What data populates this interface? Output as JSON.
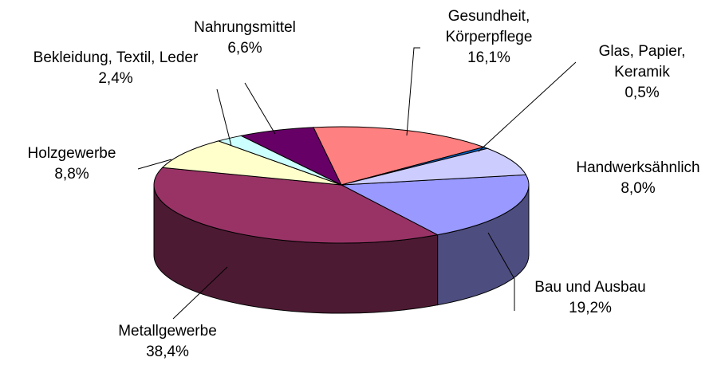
{
  "chart_data": {
    "type": "pie",
    "categories": [
      "Bau und Ausbau",
      "Metallgewerbe",
      "Holzgewerbe",
      "Bekleidung, Textil, Leder",
      "Nahrungsmittel",
      "Gesundheit, Körperpflege",
      "Glas, Papier, Keramik",
      "Handwerksähnlich"
    ],
    "values": [
      19.2,
      38.4,
      8.8,
      2.4,
      6.6,
      16.1,
      0.5,
      8.0
    ],
    "value_labels": [
      "19,2%",
      "38,4%",
      "8,8%",
      "2,4%",
      "6,6%",
      "16,1%",
      "0,5%",
      "8,0%"
    ],
    "colors": [
      "#9999ff",
      "#993366",
      "#ffffcc",
      "#ccffff",
      "#660066",
      "#ff8080",
      "#0066cc",
      "#ccccff"
    ]
  }
}
